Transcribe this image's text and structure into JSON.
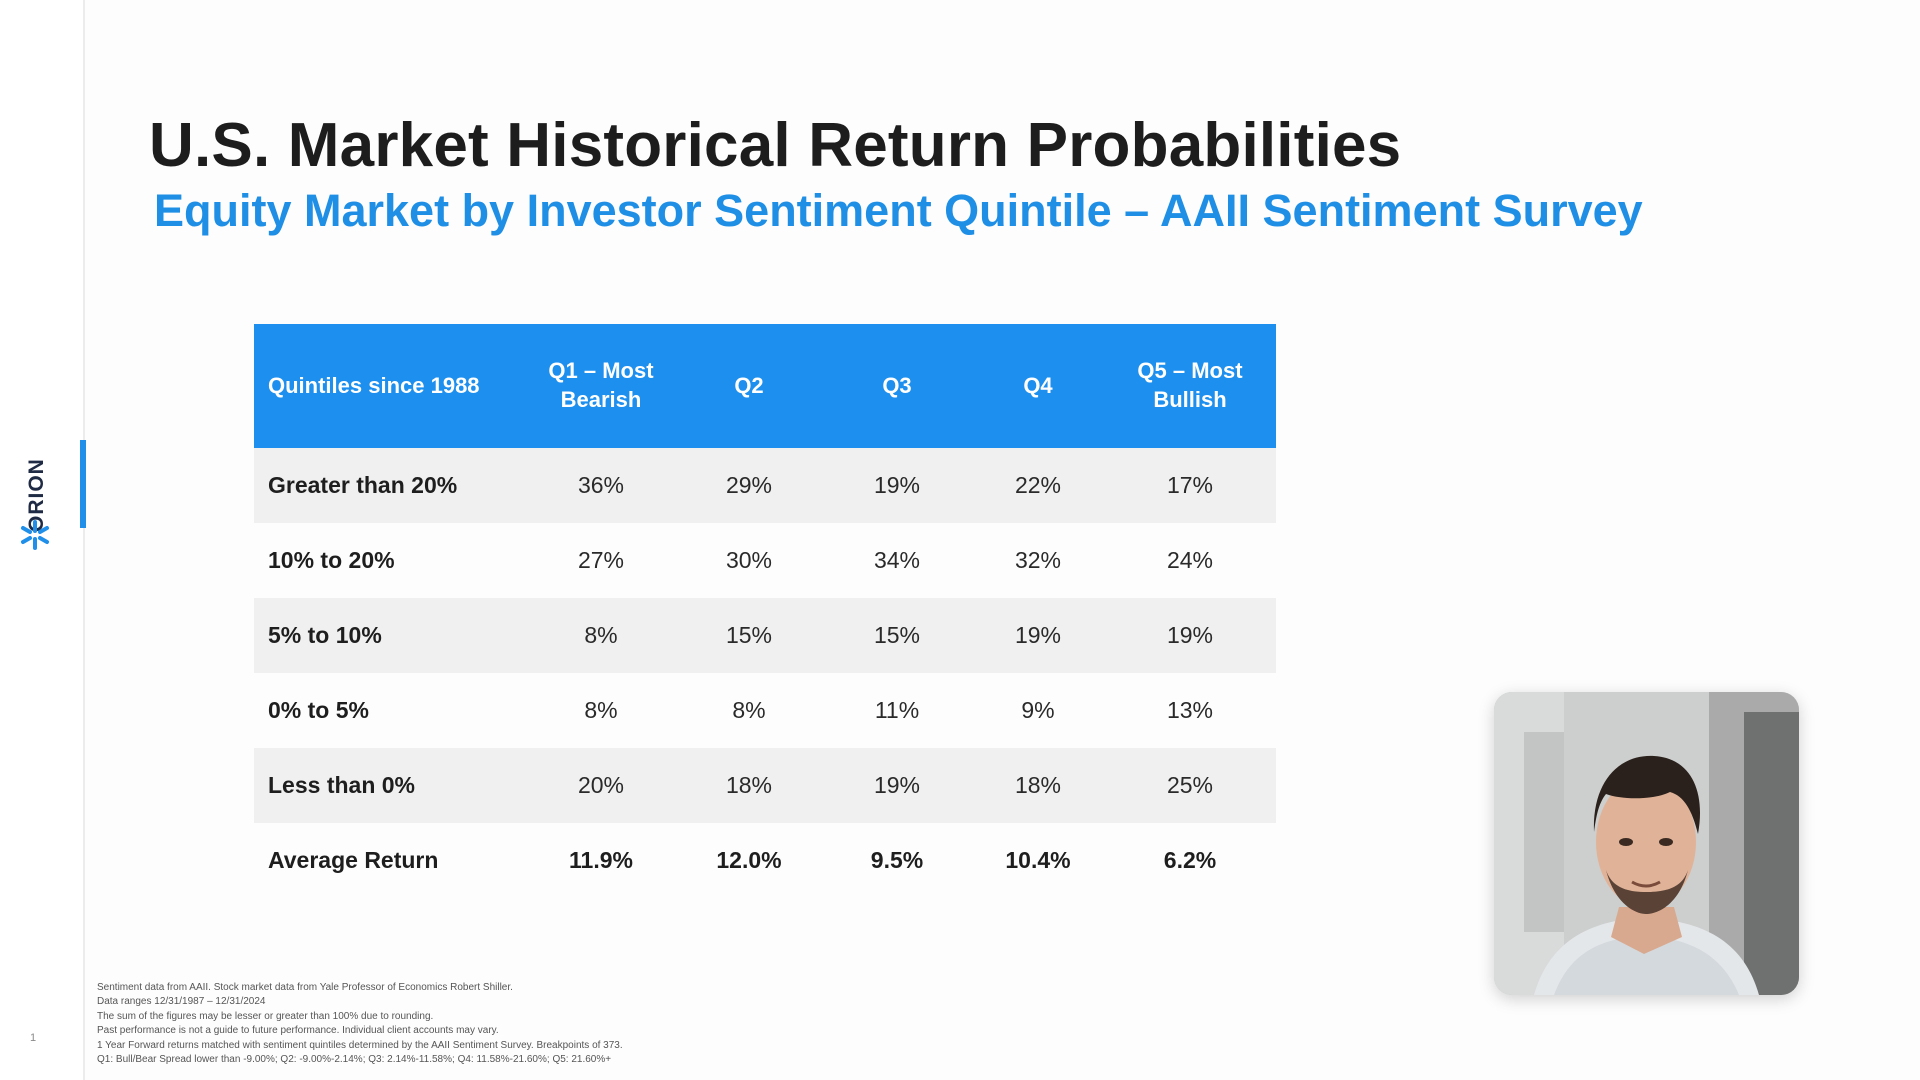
{
  "slide": {
    "title": "U.S. Market Historical Return Probabilities",
    "subtitle": "Equity Market by Investor Sentiment Quintile – AAII Sentiment Survey",
    "page_number": "1",
    "brand": {
      "name": "ORION",
      "icon": "asterisk-logo-icon",
      "accent_color": "#1f8fea"
    }
  },
  "colors": {
    "header_bg": "#1d8fee",
    "subtitle": "#1f8fe6",
    "row_shade": "#f0f0f0"
  },
  "table": {
    "headers": [
      "Quintiles since 1988",
      "Q1 – Most Bearish",
      "Q2",
      "Q3",
      "Q4",
      "Q5 – Most Bullish"
    ],
    "rows": [
      {
        "label": "Greater than 20%",
        "values": [
          "36%",
          "29%",
          "19%",
          "22%",
          "17%"
        ]
      },
      {
        "label": "10% to 20%",
        "values": [
          "27%",
          "30%",
          "34%",
          "32%",
          "24%"
        ]
      },
      {
        "label": "5% to 10%",
        "values": [
          "8%",
          "15%",
          "15%",
          "19%",
          "19%"
        ]
      },
      {
        "label": "0% to 5%",
        "values": [
          "8%",
          "8%",
          "11%",
          "9%",
          "13%"
        ]
      },
      {
        "label": "Less than 0%",
        "values": [
          "20%",
          "18%",
          "19%",
          "18%",
          "25%"
        ]
      },
      {
        "label": "Average Return",
        "values": [
          "11.9%",
          "12.0%",
          "9.5%",
          "10.4%",
          "6.2%"
        ]
      }
    ]
  },
  "footnotes": [
    "Sentiment data from AAII. Stock market data from Yale Professor of Economics Robert Shiller.",
    "Data ranges 12/31/1987 – 12/31/2024",
    "The sum of the figures may be lesser or greater than 100% due to rounding.",
    "Past performance is not a guide to future performance. Individual client accounts may vary.",
    "1 Year Forward returns matched with sentiment quintiles determined by the AAII Sentiment Survey. Breakpoints of 373.",
    "Q1: Bull/Bear Spread lower than -9.00%; Q2: -9.00%-2.14%; Q3: 2.14%-11.58%; Q4: 11.58%-21.60%; Q5: 21.60%+"
  ],
  "video": {
    "subject": "presenter-webcam"
  }
}
